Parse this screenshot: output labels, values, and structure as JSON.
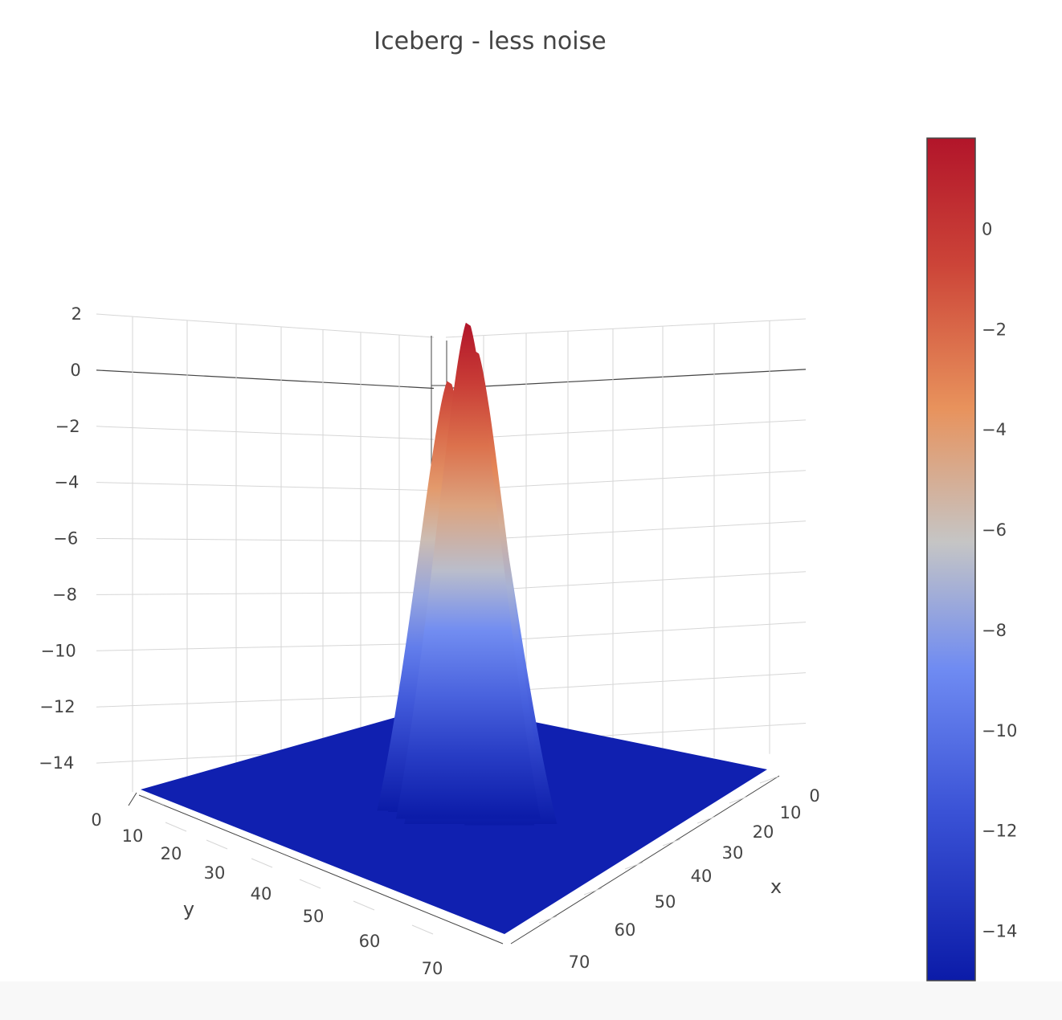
{
  "chart_data": {
    "type": "surface",
    "title": "Iceberg - less noise",
    "colorscale": "coolwarm",
    "colorscale_stops": [
      "#0b1ba8",
      "#3a52d6",
      "#6f8bf2",
      "#c5c5c5",
      "#e8925c",
      "#cc4438",
      "#b2152a"
    ],
    "surface_color_min": -15.0,
    "surface_color_max": 1.8,
    "base_level": -15.0,
    "xaxis": {
      "label": "x",
      "ticks": [
        0,
        10,
        20,
        30,
        40,
        50,
        60,
        70
      ],
      "range": [
        0,
        75
      ]
    },
    "yaxis": {
      "label": "y",
      "ticks": [
        0,
        10,
        20,
        30,
        40,
        50,
        60,
        70
      ],
      "range": [
        0,
        75
      ]
    },
    "zaxis": {
      "label": "",
      "ticks": [
        2,
        0,
        -2,
        -4,
        -6,
        -8,
        -10,
        -12,
        -14
      ],
      "tick_labels": [
        "2",
        "0",
        "−2",
        "−4",
        "−6",
        "−8",
        "−10",
        "−12",
        "−14"
      ],
      "range": [
        -15,
        2
      ]
    },
    "colorbar": {
      "ticks": [
        0,
        -2,
        -4,
        -6,
        -8,
        -10,
        -12,
        -14
      ],
      "tick_labels": [
        "0",
        "−2",
        "−4",
        "−6",
        "−8",
        "−10",
        "−12",
        "−14"
      ],
      "range": [
        -15,
        1.8
      ]
    },
    "peaks": [
      {
        "x": 38,
        "y": 32,
        "z": 1.8
      },
      {
        "x": 40,
        "y": 29,
        "z": 0.8
      },
      {
        "x": 34,
        "y": 36,
        "z": -0.3
      },
      {
        "x": 42,
        "y": 34,
        "z": -2.5
      },
      {
        "x": 36,
        "y": 40,
        "z": -4.0
      },
      {
        "x": 40,
        "y": 38,
        "z": -8.0
      },
      {
        "x": 45,
        "y": 38,
        "z": -12.0
      },
      {
        "x": 30,
        "y": 38,
        "z": -13.0
      },
      {
        "x": 34,
        "y": 45,
        "z": -13.5
      }
    ]
  }
}
